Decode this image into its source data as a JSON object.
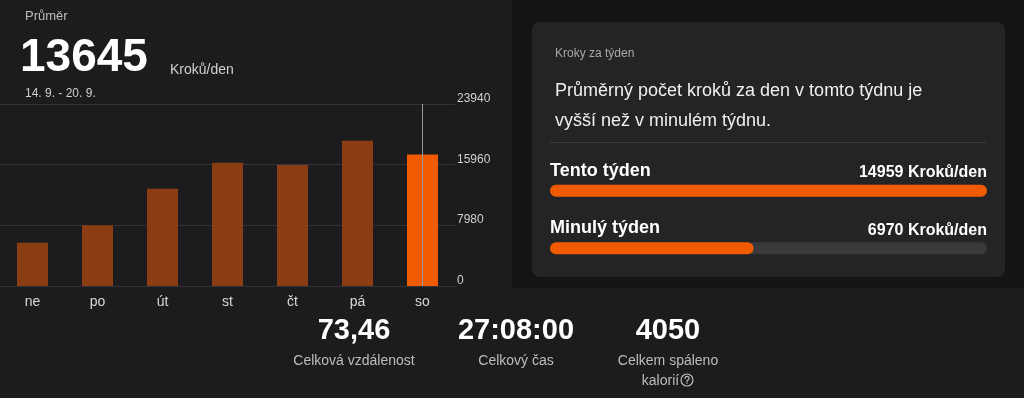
{
  "chart_data": [
    {
      "type": "bar",
      "title": "Průměr",
      "subtitle": "14. 9. - 20. 9.",
      "annotations": [
        "13645",
        "Kroků/den"
      ],
      "categories": [
        "ne",
        "po",
        "út",
        "st",
        "čt",
        "pá",
        "so"
      ],
      "values": [
        5700,
        8000,
        12800,
        16200,
        15900,
        19100,
        17300
      ],
      "colors": [
        "#8a3d12",
        "#8a3d12",
        "#8a3d12",
        "#8a3d12",
        "#8a3d12",
        "#8a3d12",
        "#f05a00"
      ],
      "ylim": [
        0,
        23940
      ],
      "yticks": [
        0,
        7980,
        15960,
        23940
      ],
      "grid": "y",
      "ref_lines": [
        {
          "axis": "x",
          "value": "so",
          "color": "#9a9a9a"
        }
      ]
    },
    {
      "type": "bar",
      "orientation": "horizontal",
      "title": "Kroky za týden",
      "subtitle": "Průměrný počet kroků za den v tomto týdnu je vyšší než v minulém týdnu.",
      "categories": [
        "Tento týden",
        "Minulý týden"
      ],
      "values": [
        14959,
        6970
      ],
      "colors": [
        "#f05a00",
        "#f05a00"
      ],
      "value_labels": [
        "14959 Kroků/den",
        "6970 Kroků/den"
      ]
    },
    {
      "type": "other",
      "annotations": [
        "73,46",
        "Celková vzdálenost",
        "27:08:00",
        "Celkový čas",
        "4050",
        "Celkem spáleno kalorií"
      ]
    }
  ]
}
